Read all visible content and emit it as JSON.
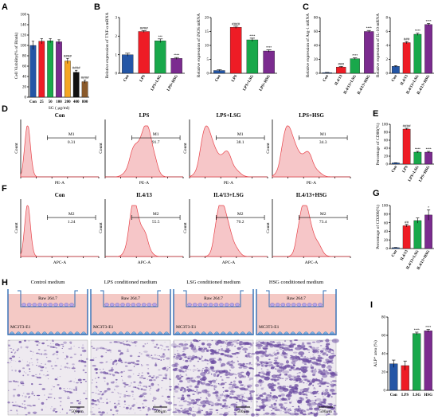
{
  "panel_letters": [
    "A",
    "B",
    "C",
    "D",
    "E",
    "F",
    "G",
    "H",
    "I"
  ],
  "chart_data": [
    {
      "id": "A",
      "type": "bar",
      "categories": [
        "Con",
        "25",
        "50",
        "100",
        "200",
        "400",
        "800"
      ],
      "values": [
        100,
        108,
        109,
        107,
        70,
        48,
        30
      ],
      "errors": [
        8,
        5,
        4,
        4,
        5,
        4,
        3
      ],
      "colors": [
        "#2456a6",
        "#ee1c25",
        "#19a84b",
        "#7b2b8f",
        "#f5a623",
        "#111111",
        "#8a5a2b"
      ],
      "significance": [
        "",
        "",
        "",
        "",
        "####",
        "####",
        "####"
      ],
      "ylabel": "Cell Viability(% of Blank)",
      "xlabel": "SG ( μg/ml)",
      "yticks": [
        "0",
        "20",
        "40",
        "60",
        "80",
        "100",
        "120",
        "140",
        "160"
      ],
      "ylim": [
        0,
        160
      ]
    },
    {
      "id": "B1",
      "type": "bar",
      "categories": [
        "Con",
        "LPS",
        "LPS+LSG",
        "LPS+HSG"
      ],
      "values": [
        1.0,
        2.25,
        1.75,
        0.8
      ],
      "errors": [
        0.08,
        0.05,
        0.1,
        0.05
      ],
      "colors": [
        "#2456a6",
        "#ee1c25",
        "#19a84b",
        "#7b2b8f"
      ],
      "significance": [
        "",
        "####",
        "***",
        "****"
      ],
      "ylabel": "Relative expression of TNF-α mRNA",
      "yticks": [
        "0",
        "1",
        "2",
        "3"
      ],
      "ylim": [
        0,
        3
      ]
    },
    {
      "id": "B2",
      "type": "bar",
      "categories": [
        "Con",
        "LPS",
        "LPS+LSG",
        "LPS+HSG"
      ],
      "values": [
        1.0,
        16.5,
        12.0,
        8.0
      ],
      "errors": [
        0.3,
        0.4,
        0.6,
        0.4
      ],
      "colors": [
        "#2456a6",
        "#ee1c25",
        "#19a84b",
        "#7b2b8f"
      ],
      "significance": [
        "",
        "####",
        "****",
        "****"
      ],
      "ylabel": "Relative expression of iNOS mRNA",
      "yticks": [
        "0",
        "5",
        "10",
        "15",
        "20"
      ],
      "ylim": [
        0,
        20
      ]
    },
    {
      "id": "C1",
      "type": "bar",
      "categories": [
        "Con",
        "IL4/13",
        "IL4/13+LSG",
        "IL4/13+HSG"
      ],
      "values": [
        1.0,
        9.0,
        21.0,
        60.0
      ],
      "errors": [
        0.3,
        0.8,
        1.2,
        1.5
      ],
      "colors": [
        "#2456a6",
        "#ee1c25",
        "#19a84b",
        "#7b2b8f"
      ],
      "significance": [
        "",
        "###",
        "****",
        "****"
      ],
      "ylabel": "Relative expression of Arg-1 mRNA",
      "yticks": [
        "0",
        "20",
        "40",
        "60",
        "80"
      ],
      "ylim": [
        0,
        80
      ]
    },
    {
      "id": "C2",
      "type": "bar",
      "categories": [
        "Con",
        "IL4/13",
        "IL4/13+LSG",
        "IL4/13+HSG"
      ],
      "values": [
        1.0,
        4.4,
        5.6,
        7.0
      ],
      "errors": [
        0.1,
        0.15,
        0.15,
        0.15
      ],
      "colors": [
        "#2456a6",
        "#ee1c25",
        "#19a84b",
        "#7b2b8f"
      ],
      "significance": [
        "",
        "###",
        "****",
        "****"
      ],
      "ylabel": "Relative expression of IL-10 mRNA",
      "yticks": [
        "0",
        "2",
        "4",
        "6",
        "8"
      ],
      "ylim": [
        0,
        8
      ]
    },
    {
      "id": "E",
      "type": "bar",
      "categories": [
        "Con",
        "LPS",
        "LPS+LSG",
        "LPS+HSG"
      ],
      "values": [
        3,
        88,
        30,
        30
      ],
      "errors": [
        0.5,
        2,
        2,
        2
      ],
      "colors": [
        "#2456a6",
        "#ee1c25",
        "#19a84b",
        "#7b2b8f"
      ],
      "significance": [
        "",
        "####",
        "****",
        "****"
      ],
      "ylabel": "Percentage of CD86(%)",
      "yticks": [
        "0",
        "20",
        "40",
        "60",
        "80",
        "100"
      ],
      "ylim": [
        0,
        100
      ]
    },
    {
      "id": "G",
      "type": "bar",
      "categories": [
        "Con",
        "IL4/13",
        "IL4/13+LSG",
        "IL4/13+HSG"
      ],
      "values": [
        2,
        53,
        65,
        78
      ],
      "errors": [
        0.5,
        3,
        6,
        12
      ],
      "colors": [
        "#2456a6",
        "#ee1c25",
        "#19a84b",
        "#7b2b8f"
      ],
      "significance": [
        "",
        "##",
        "",
        "*"
      ],
      "ylabel": "Percentage of CD206(%)",
      "yticks": [
        "0",
        "20",
        "40",
        "60",
        "80",
        "100"
      ],
      "ylim": [
        0,
        100
      ]
    },
    {
      "id": "I",
      "type": "bar",
      "categories": [
        "Con",
        "LPS",
        "LSG",
        "HSG"
      ],
      "values": [
        29,
        27,
        62,
        65
      ],
      "errors": [
        4,
        5,
        1.5,
        1.5
      ],
      "colors": [
        "#2456a6",
        "#ee1c25",
        "#19a84b",
        "#7b2b8f"
      ],
      "significance": [
        "",
        "",
        "****",
        "****"
      ],
      "ylabel": "ALP⁺ area (%)",
      "yticks": [
        "0",
        "20",
        "40",
        "60",
        "80"
      ],
      "ylim": [
        0,
        80
      ]
    }
  ],
  "flow_D": {
    "titles": [
      "Con",
      "LPS",
      "LPS+LSG",
      "LPS+HSG"
    ],
    "gate": "M1",
    "values": [
      "0.31",
      "91.7",
      "38.1",
      "34.3"
    ],
    "xlabel": "PE-A",
    "ylabel": "Count"
  },
  "flow_F": {
    "titles": [
      "Con",
      "IL4/13",
      "IL4/13+LSG",
      "IL4/13+HSG"
    ],
    "gate": "M2",
    "values": [
      "1.24",
      "55.5",
      "70.2",
      "73.4"
    ],
    "xlabel": "APC-A",
    "ylabel": "Count"
  },
  "transwell_H": {
    "titles": [
      "Control medium",
      "LPS conditioned medium",
      "LSG conditioned medium",
      "HSG conditioned medium"
    ],
    "insert_label": "Raw 264.7",
    "bottom_label": "MC3T3-E1",
    "scale_bar": "500μm",
    "stain_density": [
      0.25,
      0.35,
      0.75,
      0.9
    ]
  },
  "colors": {
    "fill_pink": "#f6c6c8",
    "flow_red": "#e8434a",
    "stain": "#6a4aa0"
  }
}
